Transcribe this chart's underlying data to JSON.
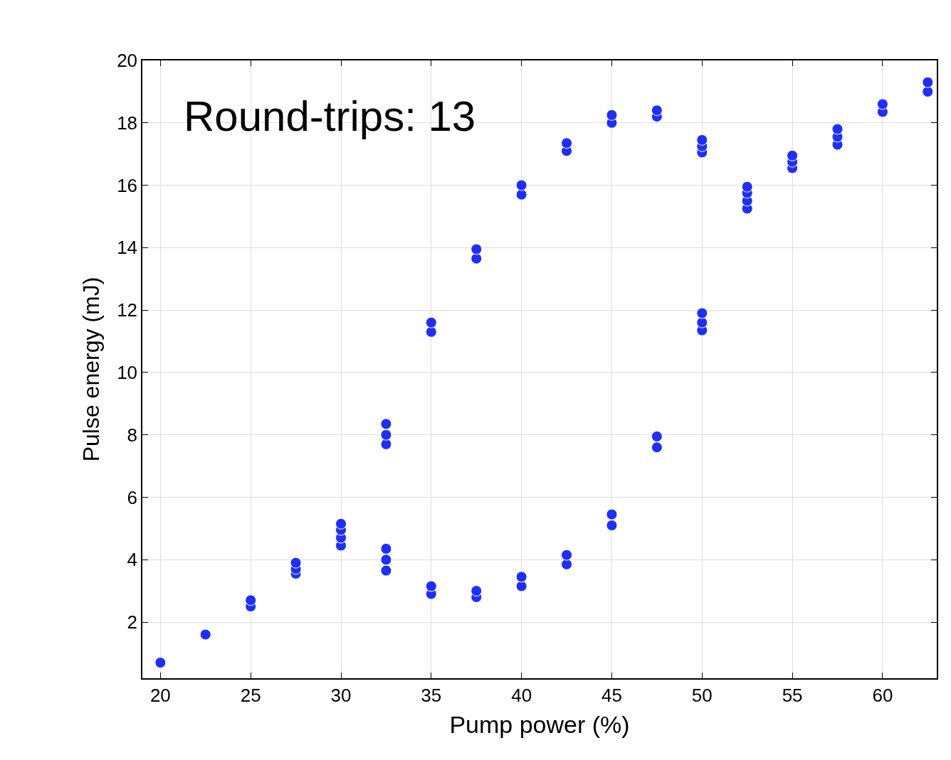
{
  "chart_data": {
    "type": "scatter",
    "xlabel": "Pump power (%)",
    "ylabel": "Pulse energy (mJ)",
    "annotations": [
      "Round-trips: 13"
    ],
    "series": [
      {
        "color": "#1f2ff5",
        "x": [
          20,
          22.5,
          25,
          25,
          27.5,
          27.5,
          27.5,
          30,
          30,
          30,
          30,
          32.5,
          32.5,
          32.5,
          32.5,
          32.5,
          32.5,
          35,
          35,
          35,
          35,
          37.5,
          37.5,
          37.5,
          37.5,
          40,
          40,
          40,
          40,
          42.5,
          42.5,
          42.5,
          42.5,
          45,
          45,
          45,
          45,
          47.5,
          47.5,
          47.5,
          47.5,
          50,
          50,
          50,
          50,
          50,
          50,
          52.5,
          52.5,
          52.5,
          52.5,
          55,
          55,
          55,
          57.5,
          57.5,
          57.5,
          60,
          60,
          62.5,
          62.5
        ],
        "values": [
          0.7,
          1.6,
          2.5,
          2.7,
          3.55,
          3.7,
          3.9,
          4.45,
          4.7,
          4.95,
          5.15,
          7.7,
          8.0,
          8.35,
          3.65,
          4.0,
          4.35,
          11.3,
          11.6,
          2.9,
          3.15,
          13.65,
          13.95,
          2.8,
          3.0,
          15.7,
          16.0,
          3.15,
          3.45,
          17.1,
          17.35,
          3.85,
          4.15,
          18.0,
          18.25,
          5.1,
          5.45,
          18.2,
          18.4,
          7.6,
          7.95,
          17.05,
          17.25,
          17.45,
          11.35,
          11.6,
          11.9,
          15.25,
          15.5,
          15.75,
          15.95,
          16.55,
          16.75,
          16.95,
          17.3,
          17.55,
          17.8,
          18.35,
          18.6,
          19.0,
          19.3
        ]
      }
    ],
    "marker": "circle",
    "xlim": [
      19,
      63
    ],
    "ylim": [
      0.2,
      20
    ],
    "xticks": [
      20,
      25,
      30,
      35,
      40,
      45,
      50,
      55,
      60
    ],
    "yticks": [
      2,
      4,
      6,
      8,
      10,
      12,
      14,
      16,
      18,
      20
    ],
    "grid": true
  }
}
